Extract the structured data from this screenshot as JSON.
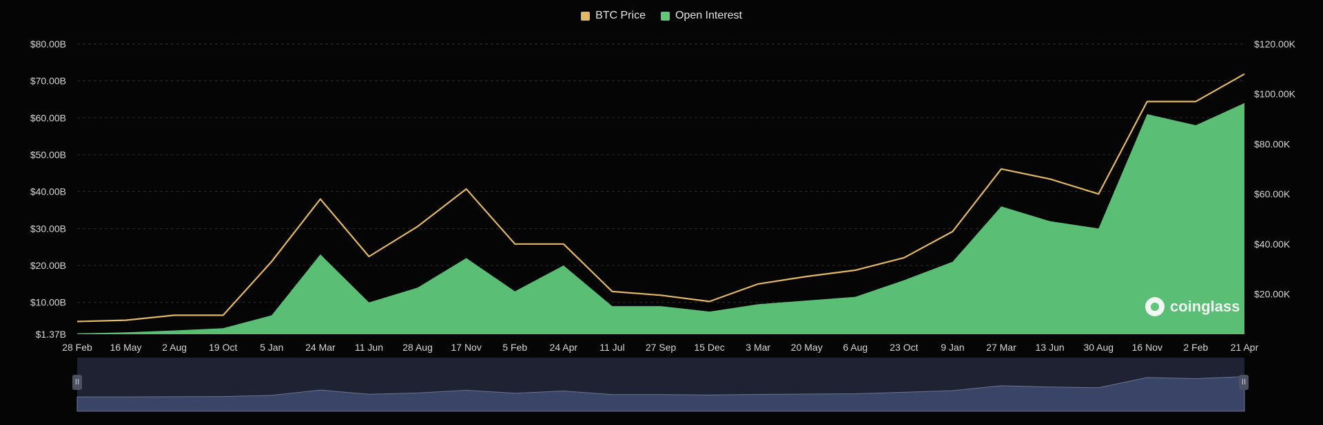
{
  "chart_data": {
    "type": "area",
    "legend": [
      {
        "label": "BTC Price",
        "color": "#e3b964"
      },
      {
        "label": "Open Interest",
        "color": "#5fc87a"
      }
    ],
    "legend_position": "top-center",
    "grid": true,
    "x_tick_labels": [
      "28 Feb",
      "16 May",
      "2 Aug",
      "19 Oct",
      "5 Jan",
      "24 Mar",
      "11 Jun",
      "28 Aug",
      "17 Nov",
      "5 Feb",
      "24 Apr",
      "11 Jul",
      "27 Sep",
      "15 Dec",
      "3 Mar",
      "20 May",
      "6 Aug",
      "23 Oct",
      "9 Jan",
      "27 Mar",
      "13 Jun",
      "30 Aug",
      "16 Nov",
      "2 Feb",
      "21 Apr"
    ],
    "y_left": {
      "tick_labels": [
        "$80.00B",
        "$70.00B",
        "$60.00B",
        "$50.00B",
        "$40.00B",
        "$30.00B",
        "$20.00B",
        "$10.00B",
        "$1.37B"
      ],
      "tick_values": [
        80,
        70,
        60,
        50,
        40,
        30,
        20,
        10,
        1.37
      ],
      "unit": "B",
      "range": [
        1.37,
        80
      ]
    },
    "y_right": {
      "tick_labels": [
        "$120.00K",
        "$100.00K",
        "$80.00K",
        "$60.00K",
        "$40.00K",
        "$20.00K"
      ],
      "tick_values": [
        120,
        100,
        80,
        60,
        40,
        20
      ],
      "unit": "K",
      "range": [
        3.9,
        120
      ]
    },
    "x": [
      "28 Feb",
      "16 May",
      "2 Aug",
      "19 Oct",
      "5 Jan",
      "24 Mar",
      "11 Jun",
      "28 Aug",
      "17 Nov",
      "5 Feb",
      "24 Apr",
      "11 Jul",
      "27 Sep",
      "15 Dec",
      "3 Mar",
      "20 May",
      "6 Aug",
      "23 Oct",
      "9 Jan",
      "27 Mar",
      "13 Jun",
      "30 Aug",
      "16 Nov",
      "2 Feb",
      "21 Apr"
    ],
    "series": [
      {
        "name": "Open Interest",
        "axis": "left",
        "color": "#5fc87a",
        "values": [
          1.6,
          1.9,
          2.4,
          3.0,
          6.5,
          23.0,
          10.0,
          14.0,
          22.0,
          13.0,
          20.0,
          9.0,
          9.0,
          7.5,
          9.5,
          10.5,
          11.5,
          16.0,
          21.0,
          36.0,
          32.0,
          30.0,
          61.0,
          58.0,
          64.0
        ]
      },
      {
        "name": "BTC Price",
        "axis": "right",
        "color": "#e3b964",
        "values": [
          9.0,
          9.5,
          11.5,
          11.5,
          33.0,
          58.0,
          35.0,
          47.0,
          62.0,
          40.0,
          40.0,
          21.0,
          19.5,
          17.0,
          24.0,
          27.0,
          29.5,
          34.5,
          45.0,
          70.0,
          66.0,
          60.0,
          97.0,
          97.0,
          108.0
        ]
      }
    ]
  },
  "watermark": {
    "text": "coinglass"
  },
  "navigator": {
    "left_handle": "II",
    "right_handle": "II"
  }
}
